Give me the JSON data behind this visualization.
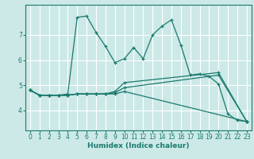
{
  "xlabel": "Humidex (Indice chaleur)",
  "bg_color": "#cce9e7",
  "grid_color": "#ffffff",
  "line_color": "#1a7a6e",
  "xlim": [
    -0.5,
    23.5
  ],
  "ylim": [
    3.2,
    8.2
  ],
  "yticks": [
    4,
    5,
    6,
    7
  ],
  "xticks": [
    0,
    1,
    2,
    3,
    4,
    5,
    6,
    7,
    8,
    9,
    10,
    11,
    12,
    13,
    14,
    15,
    16,
    17,
    18,
    19,
    20,
    21,
    22,
    23
  ],
  "lines": [
    {
      "x": [
        0,
        1,
        2,
        3,
        4,
        5,
        6,
        7,
        8,
        9,
        10,
        11,
        12,
        13,
        14,
        15,
        16,
        17,
        18,
        19,
        20,
        21,
        22,
        23
      ],
      "y": [
        4.8,
        4.6,
        4.6,
        4.6,
        4.65,
        7.7,
        7.75,
        7.1,
        6.55,
        5.9,
        6.05,
        6.5,
        6.05,
        7.0,
        7.35,
        7.6,
        6.6,
        5.4,
        5.45,
        5.35,
        5.05,
        3.85,
        3.6,
        3.55
      ]
    },
    {
      "x": [
        0,
        1,
        2,
        3,
        4,
        5,
        6,
        7,
        8,
        9,
        10,
        23
      ],
      "y": [
        4.8,
        4.6,
        4.6,
        4.6,
        4.6,
        4.65,
        4.65,
        4.65,
        4.65,
        4.65,
        4.75,
        3.55
      ]
    },
    {
      "x": [
        0,
        1,
        2,
        3,
        4,
        5,
        6,
        7,
        8,
        9,
        10,
        20,
        23
      ],
      "y": [
        4.8,
        4.6,
        4.6,
        4.6,
        4.6,
        4.65,
        4.65,
        4.65,
        4.65,
        4.7,
        4.9,
        5.4,
        3.55
      ]
    },
    {
      "x": [
        0,
        1,
        2,
        3,
        4,
        5,
        6,
        7,
        8,
        9,
        10,
        20,
        23
      ],
      "y": [
        4.8,
        4.6,
        4.6,
        4.6,
        4.6,
        4.65,
        4.65,
        4.65,
        4.65,
        4.75,
        5.1,
        5.5,
        3.55
      ]
    }
  ]
}
